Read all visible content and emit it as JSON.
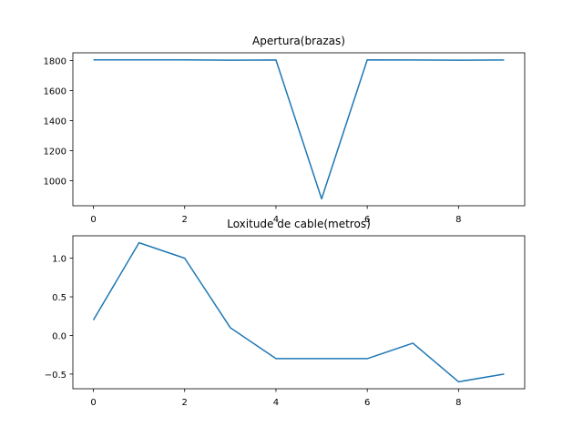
{
  "chart_data": [
    {
      "type": "line",
      "title": "Apertura(brazas)",
      "xlabel": "",
      "ylabel": "",
      "x": [
        0,
        1,
        2,
        3,
        4,
        5,
        6,
        7,
        8,
        9
      ],
      "series": [
        {
          "values": [
            1805,
            1805,
            1805,
            1803,
            1804,
            880,
            1805,
            1804,
            1803,
            1804
          ],
          "color": "#1f77b4"
        }
      ],
      "xlim": [
        -0.45,
        9.45
      ],
      "ylim": [
        834,
        1852
      ],
      "xticks": [
        0,
        2,
        4,
        6,
        8
      ],
      "yticks": [
        1000,
        1200,
        1400,
        1600,
        1800
      ],
      "grid": false
    },
    {
      "type": "line",
      "title": "Loxitude de cable(metros)",
      "xlabel": "",
      "ylabel": "",
      "x": [
        0,
        1,
        2,
        3,
        4,
        5,
        6,
        7,
        8,
        9
      ],
      "series": [
        {
          "values": [
            0.2,
            1.2,
            1.0,
            0.1,
            -0.3,
            -0.3,
            -0.3,
            -0.1,
            -0.6,
            -0.5
          ],
          "color": "#1f77b4"
        }
      ],
      "xlim": [
        -0.45,
        9.45
      ],
      "ylim": [
        -0.69,
        1.29
      ],
      "xticks": [
        0,
        2,
        4,
        6,
        8
      ],
      "yticks": [
        -0.5,
        0.0,
        0.5,
        1.0
      ],
      "ytick_labels": [
        "−0.5",
        "0.0",
        "0.5",
        "1.0"
      ],
      "grid": false
    }
  ]
}
